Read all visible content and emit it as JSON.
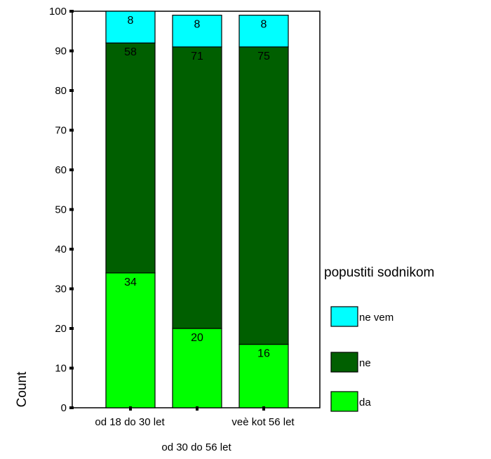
{
  "chart_data": {
    "type": "bar",
    "stacked": true,
    "categories": [
      "od 18 do 30 let",
      "od 30 do 56 let",
      "veè kot 56 let"
    ],
    "series": [
      {
        "name": "da",
        "values": [
          34,
          20,
          16
        ],
        "labels": [
          "34",
          "20",
          "16"
        ],
        "color": "#00ff00"
      },
      {
        "name": "ne",
        "values": [
          58,
          71,
          75
        ],
        "labels": [
          "58",
          "71",
          "75"
        ],
        "color": "#005f00"
      },
      {
        "name": "ne vem",
        "values": [
          8,
          8,
          8
        ],
        "labels": [
          "8",
          "8",
          "8"
        ],
        "color": "#00ffff"
      }
    ],
    "ylabel": "Count",
    "ylim": [
      0,
      100
    ],
    "yticks": [
      "0",
      "10",
      "20",
      "30",
      "40",
      "50",
      "60",
      "70",
      "80",
      "90",
      "100"
    ],
    "legend_title": "popustiti sodnikom",
    "legend_order": [
      "ne vem",
      "ne",
      "da"
    ],
    "legend_position": "right",
    "grid": false
  }
}
